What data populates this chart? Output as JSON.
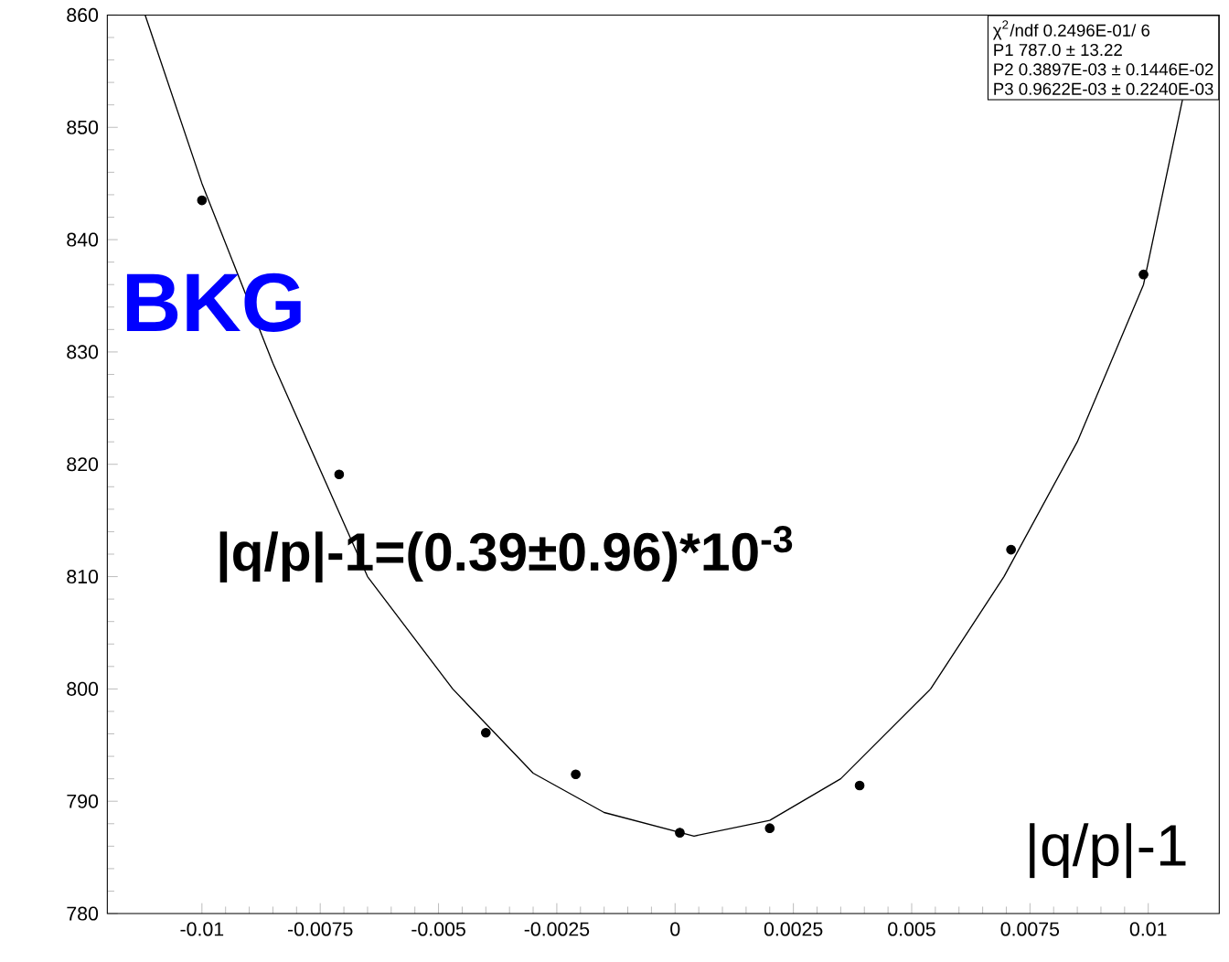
{
  "chart_data": {
    "type": "scatter",
    "xlabel": "|q/p|-1",
    "series": [
      {
        "color": "#000000",
        "marker": "circle",
        "x": [
          -0.01,
          -0.0071,
          -0.004,
          -0.0021,
          0.0001,
          0.002,
          0.0039,
          0.0071,
          0.0099
        ],
        "values": [
          843.5,
          819.1,
          796.1,
          792.4,
          787.2,
          787.6,
          791.4,
          812.4,
          836.9
        ]
      },
      {
        "type": "line",
        "color": "#000000",
        "line_style": "solid",
        "marker": "none",
        "x": [
          -0.0112,
          -0.01,
          -0.0085,
          -0.0065,
          -0.0047,
          -0.003,
          -0.0015,
          0.0004,
          0.002,
          0.0035,
          0.0054,
          0.00695,
          0.0085,
          0.0099,
          0.0111
        ],
        "values": [
          860,
          845,
          829,
          810,
          800,
          792.5,
          789,
          786.9,
          788.3,
          792,
          800,
          810,
          822,
          836,
          860
        ]
      }
    ],
    "xlim": [
      -0.012,
      0.0115
    ],
    "ylim": [
      780,
      860
    ],
    "xticks": [
      -0.01,
      -0.0075,
      -0.005,
      -0.0025,
      0,
      0.0025,
      0.005,
      0.0075,
      0.01
    ],
    "yticks": [
      780,
      790,
      800,
      810,
      820,
      830,
      840,
      850,
      860
    ],
    "annotations": [
      "BKG",
      "|q/p|-1=(0.39±0.96)*10$^{-3}$",
      "χ$^{2}$/ndf 0.2496E-01/ 6",
      "P1 787.0 ± 13.22",
      "P2 0.3897E-03 ± 0.1446E-02",
      "P3 0.9622E-03 ± 0.2240E-03"
    ]
  }
}
